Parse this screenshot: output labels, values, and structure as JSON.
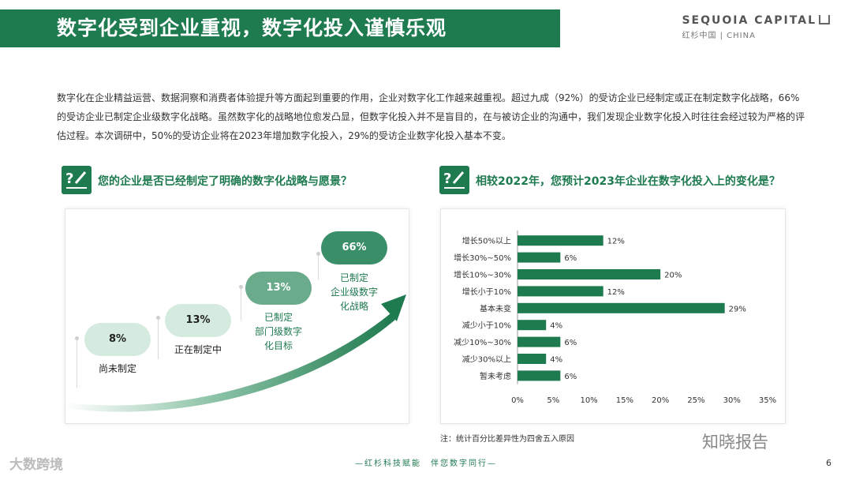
{
  "header": {
    "title": "数字化受到企业重视，数字化投入谨慎乐观",
    "brand_main": "SEQUOIA CAPITAL",
    "brand_sub": "红杉中国 | CHINA"
  },
  "intro_text": "数字化在企业精益运营、数据洞察和消费者体验提升等方面起到重要的作用，企业对数字化工作越来越重视。超过九成（92%）的受访企业已经制定或正在制定数字化战略，66%的受访企业已制定企业级数字化战略。虽然数字化的战略地位愈发凸显，但数字化投入并不是盲目的，在与被访企业的沟通中，我们发现企业数字化投入时往往会经过较为严格的评估过程。本次调研中，50%的受访企业将在2023年增加数字化投入，29%的受访企业数字化投入基本不变。",
  "left_question": "您的企业是否已经制定了明确的数字化战略与愿景？",
  "right_question": "相较2022年，您预计2023年企业在数字化投入上的变化是？",
  "colors": {
    "accent": "#1e7a4f",
    "bar": "#1e7a4f",
    "light": "#d6ebe0",
    "mid": "#6aab8c",
    "dark": "#3b8f68"
  },
  "chart_data": [
    {
      "type": "bar",
      "orientation": "stages",
      "categories": [
        "尚未制定",
        "正在制定中",
        "已制定部门级数字化目标",
        "已制定企业级数字化战略"
      ],
      "values": [
        8,
        13,
        13,
        66
      ],
      "value_labels": [
        "8%",
        "13%",
        "13%",
        "66%"
      ],
      "stage_labels": [
        [
          "尚未制定"
        ],
        [
          "正在制定中"
        ],
        [
          "已制定",
          "部门级数字",
          "化目标"
        ],
        [
          "已制定",
          "企业级数字",
          "化战略"
        ]
      ]
    },
    {
      "type": "bar",
      "orientation": "horizontal",
      "categories": [
        "增长50%以上",
        "增长30%~50%",
        "增长10%~30%",
        "增长小于10%",
        "基本未变",
        "减少小于10%",
        "减少10%~30%",
        "减少30%以上",
        "暂未考虑"
      ],
      "values": [
        12,
        6,
        20,
        12,
        29,
        4,
        6,
        4,
        6
      ],
      "value_labels": [
        "12%",
        "6%",
        "20%",
        "12%",
        "29%",
        "4%",
        "6%",
        "4%",
        "6%"
      ],
      "xlim": [
        0,
        35
      ],
      "ticks": [
        0,
        5,
        10,
        15,
        20,
        25,
        30,
        35
      ],
      "tick_labels": [
        "0%",
        "5%",
        "10%",
        "15%",
        "20%",
        "25%",
        "30%",
        "35%"
      ]
    }
  ],
  "note": "注：统计百分比差异性为四舍五入原因",
  "footer": "—红杉科技赋能　伴您数字同行—",
  "page_number": "6",
  "watermark_left": "大数跨境",
  "watermark_right": "知晓报告"
}
